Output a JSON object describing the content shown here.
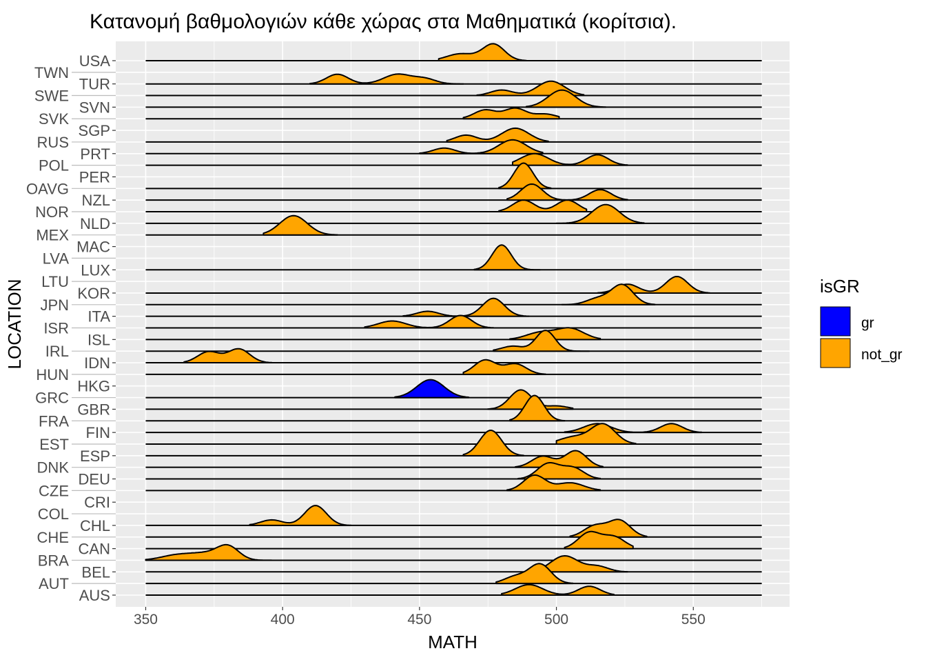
{
  "chart_data": {
    "type": "ridgeline",
    "title": "Κατανομή βαθμολογιών κάθε χώρας στα Μαθηματικά (κορίτσια).",
    "xlabel": "MATH",
    "ylabel": "LOCATION",
    "xlim": [
      340,
      585
    ],
    "xticks": [
      350,
      400,
      450,
      500,
      550
    ],
    "grid": true,
    "legend": {
      "title": "isGR",
      "position": "right",
      "entries": [
        {
          "label": "gr",
          "color": "#0000FF"
        },
        {
          "label": "not_gr",
          "color": "#FFA500"
        }
      ]
    },
    "density_unit_note": "peaks: [mean, sd, relative height]",
    "rows": [
      {
        "location": "AUS",
        "group": "not_gr",
        "range": [
          480,
          521
        ],
        "peaks": [
          [
            490,
            5,
            0.38
          ],
          [
            512,
            4,
            0.32
          ]
        ]
      },
      {
        "location": "AUT",
        "group": "not_gr",
        "range": [
          478,
          506
        ],
        "peaks": [
          [
            485,
            4,
            0.25
          ],
          [
            494,
            4,
            0.7
          ]
        ]
      },
      {
        "location": "BEL",
        "group": "not_gr",
        "range": [
          490,
          526
        ],
        "peaks": [
          [
            503,
            5,
            0.58
          ],
          [
            515,
            4,
            0.2
          ]
        ]
      },
      {
        "location": "BRA",
        "group": "not_gr",
        "range": [
          350,
          396
        ],
        "peaks": [
          [
            362,
            6,
            0.2
          ],
          [
            372,
            5,
            0.2
          ],
          [
            380,
            4,
            0.5
          ]
        ]
      },
      {
        "location": "CAN",
        "group": "not_gr",
        "range": [
          503,
          528
        ],
        "peaks": [
          [
            512,
            4,
            0.58
          ],
          [
            521,
            4,
            0.42
          ]
        ]
      },
      {
        "location": "CHE",
        "group": "not_gr",
        "range": [
          505,
          533
        ],
        "peaks": [
          [
            514,
            4,
            0.4
          ],
          [
            523,
            4,
            0.6
          ]
        ]
      },
      {
        "location": "CHL",
        "group": "not_gr",
        "range": [
          388,
          425
        ],
        "peaks": [
          [
            396,
            4,
            0.2
          ],
          [
            412,
            4,
            0.72
          ]
        ]
      },
      {
        "location": "COL",
        "group": null,
        "range": null,
        "peaks": null
      },
      {
        "location": "CRI",
        "group": null,
        "range": null,
        "peaks": null
      },
      {
        "location": "CZE",
        "group": "not_gr",
        "range": [
          482,
          516
        ],
        "peaks": [
          [
            492,
            4,
            0.55
          ],
          [
            505,
            5,
            0.28
          ]
        ]
      },
      {
        "location": "DEU",
        "group": "not_gr",
        "range": [
          486,
          516
        ],
        "peaks": [
          [
            497,
            4,
            0.55
          ],
          [
            506,
            4,
            0.4
          ]
        ]
      },
      {
        "location": "DNK",
        "group": "not_gr",
        "range": [
          485,
          517
        ],
        "peaks": [
          [
            495,
            4,
            0.4
          ],
          [
            507,
            4,
            0.6
          ]
        ]
      },
      {
        "location": "ESP",
        "group": "not_gr",
        "range": [
          466,
          488
        ],
        "peaks": [
          [
            476,
            4,
            0.92
          ]
        ]
      },
      {
        "location": "EST",
        "group": "not_gr",
        "range": [
          500,
          529
        ],
        "peaks": [
          [
            506,
            5,
            0.25
          ],
          [
            517,
            4.5,
            0.72
          ]
        ]
      },
      {
        "location": "FIN",
        "group": "not_gr",
        "range": [
          503,
          553
        ],
        "peaks": [
          [
            515,
            5,
            0.32
          ],
          [
            542,
            4,
            0.32
          ]
        ]
      },
      {
        "location": "FRA",
        "group": "not_gr",
        "range": [
          483,
          503
        ],
        "peaks": [
          [
            492,
            3.5,
            0.92
          ]
        ]
      },
      {
        "location": "GBR",
        "group": "not_gr",
        "range": [
          475,
          506
        ],
        "peaks": [
          [
            487,
            4,
            0.7
          ],
          [
            500,
            4,
            0.12
          ]
        ]
      },
      {
        "location": "GRC",
        "group": "gr",
        "range": [
          441,
          468
        ],
        "peaks": [
          [
            454,
            5,
            0.65
          ]
        ]
      },
      {
        "location": "HKG",
        "group": null,
        "range": null,
        "peaks": null
      },
      {
        "location": "HUN",
        "group": "not_gr",
        "range": [
          466,
          496
        ],
        "peaks": [
          [
            474,
            4,
            0.52
          ],
          [
            485,
            4,
            0.38
          ]
        ]
      },
      {
        "location": "IDN",
        "group": "not_gr",
        "range": [
          364,
          396
        ],
        "peaks": [
          [
            373,
            4,
            0.4
          ],
          [
            384,
            4,
            0.5
          ]
        ]
      },
      {
        "location": "IRL",
        "group": "not_gr",
        "range": [
          477,
          512
        ],
        "peaks": [
          [
            484,
            4,
            0.18
          ],
          [
            496,
            3.5,
            0.75
          ]
        ]
      },
      {
        "location": "ISL",
        "group": "not_gr",
        "range": [
          483,
          516
        ],
        "peaks": [
          [
            494,
            5,
            0.25
          ],
          [
            505,
            5,
            0.4
          ]
        ]
      },
      {
        "location": "ISR",
        "group": "not_gr",
        "range": [
          430,
          477
        ],
        "peaks": [
          [
            440,
            5,
            0.25
          ],
          [
            465,
            4,
            0.45
          ]
        ]
      },
      {
        "location": "ITA",
        "group": "not_gr",
        "range": [
          444,
          490
        ],
        "peaks": [
          [
            453,
            4,
            0.18
          ],
          [
            477,
            4,
            0.65
          ]
        ]
      },
      {
        "location": "JPN",
        "group": "not_gr",
        "range": [
          502,
          536
        ],
        "peaks": [
          [
            515,
            4,
            0.22
          ],
          [
            524,
            4,
            0.72
          ]
        ]
      },
      {
        "location": "KOR",
        "group": "not_gr",
        "range": [
          515,
          556
        ],
        "peaks": [
          [
            526,
            4,
            0.32
          ],
          [
            544,
            4,
            0.6
          ]
        ]
      },
      {
        "location": "LTU",
        "group": null,
        "range": null,
        "peaks": null
      },
      {
        "location": "LUX",
        "group": "not_gr",
        "range": [
          470,
          494
        ],
        "peaks": [
          [
            480,
            3.5,
            0.9
          ]
        ]
      },
      {
        "location": "LVA",
        "group": null,
        "range": null,
        "peaks": null
      },
      {
        "location": "MAC",
        "group": null,
        "range": null,
        "peaks": null
      },
      {
        "location": "MEX",
        "group": "not_gr",
        "range": [
          393,
          420
        ],
        "peaks": [
          [
            404,
            5,
            0.7
          ]
        ]
      },
      {
        "location": "NLD",
        "group": "not_gr",
        "range": [
          500,
          532
        ],
        "peaks": [
          [
            518,
            5,
            0.68
          ]
        ]
      },
      {
        "location": "NOR",
        "group": "not_gr",
        "range": [
          479,
          511
        ],
        "peaks": [
          [
            488,
            4,
            0.42
          ],
          [
            504,
            4,
            0.42
          ]
        ]
      },
      {
        "location": "NZL",
        "group": "not_gr",
        "range": [
          482,
          526
        ],
        "peaks": [
          [
            491,
            4,
            0.58
          ],
          [
            516,
            4,
            0.38
          ]
        ]
      },
      {
        "location": "OAVG",
        "group": "not_gr",
        "range": [
          479,
          498
        ],
        "peaks": [
          [
            488,
            3.5,
            0.92
          ]
        ]
      },
      {
        "location": "PER",
        "group": null,
        "range": null,
        "peaks": null
      },
      {
        "location": "POL",
        "group": "not_gr",
        "range": [
          484,
          526
        ],
        "peaks": [
          [
            492,
            5,
            0.42
          ],
          [
            515,
            4,
            0.38
          ]
        ]
      },
      {
        "location": "PRT",
        "group": "not_gr",
        "range": [
          450,
          495
        ],
        "peaks": [
          [
            459,
            4,
            0.2
          ],
          [
            484,
            5,
            0.5
          ]
        ]
      },
      {
        "location": "RUS",
        "group": "not_gr",
        "range": [
          460,
          497
        ],
        "peaks": [
          [
            467,
            4,
            0.25
          ],
          [
            485,
            5,
            0.5
          ]
        ]
      },
      {
        "location": "SGP",
        "group": null,
        "range": null,
        "peaks": null
      },
      {
        "location": "SVK",
        "group": "not_gr",
        "range": [
          466,
          501
        ],
        "peaks": [
          [
            474,
            4,
            0.32
          ],
          [
            485,
            4,
            0.38
          ],
          [
            496,
            4,
            0.17
          ]
        ]
      },
      {
        "location": "SVN",
        "group": "not_gr",
        "range": [
          489,
          518
        ],
        "peaks": [
          [
            502,
            5,
            0.62
          ]
        ]
      },
      {
        "location": "SWE",
        "group": "not_gr",
        "range": [
          471,
          510
        ],
        "peaks": [
          [
            480,
            4,
            0.2
          ],
          [
            498,
            5,
            0.52
          ]
        ]
      },
      {
        "location": "TUR",
        "group": "not_gr",
        "range": [
          410,
          466
        ],
        "peaks": [
          [
            420,
            4,
            0.35
          ],
          [
            442,
            5,
            0.35
          ],
          [
            452,
            4,
            0.18
          ]
        ]
      },
      {
        "location": "TWN",
        "group": null,
        "range": null,
        "peaks": null
      },
      {
        "location": "USA",
        "group": "not_gr",
        "range": [
          457,
          489
        ],
        "peaks": [
          [
            465,
            5,
            0.25
          ],
          [
            477,
            4,
            0.6
          ]
        ]
      }
    ]
  }
}
